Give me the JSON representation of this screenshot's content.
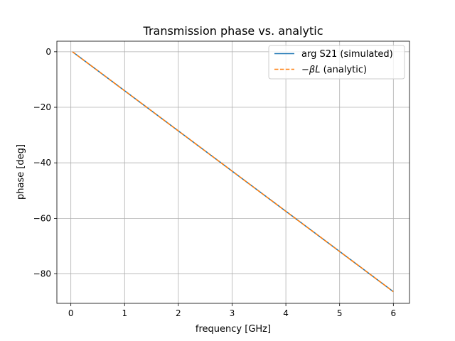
{
  "chart_data": {
    "type": "line",
    "title": "Transmission phase vs. analytic",
    "xlabel": "frequency [GHz]",
    "ylabel": "phase [deg]",
    "xlim": [
      -0.26,
      6.3
    ],
    "ylim": [
      -90.6,
      3.8
    ],
    "xticks": [
      0,
      1,
      2,
      3,
      4,
      5,
      6
    ],
    "xtick_labels": [
      "0",
      "1",
      "2",
      "3",
      "4",
      "5",
      "6"
    ],
    "yticks": [
      0,
      -20,
      -40,
      -60,
      -80
    ],
    "ytick_labels": [
      "0",
      "−20",
      "−40",
      "−60",
      "−80"
    ],
    "grid": true,
    "legend_position": "top-right",
    "series": [
      {
        "name": "arg S21 (simulated)",
        "style": "solid",
        "color": "#1f77b4",
        "x": [
          0.03,
          6.0
        ],
        "y": [
          0.0,
          -86.4
        ]
      },
      {
        "name_prefix": "−",
        "name_symbol": "βL",
        "name_suffix": " (analytic)",
        "style": "dashed",
        "color": "#ff7f0e",
        "x": [
          0.03,
          6.0
        ],
        "y": [
          0.0,
          -86.4
        ]
      }
    ]
  }
}
